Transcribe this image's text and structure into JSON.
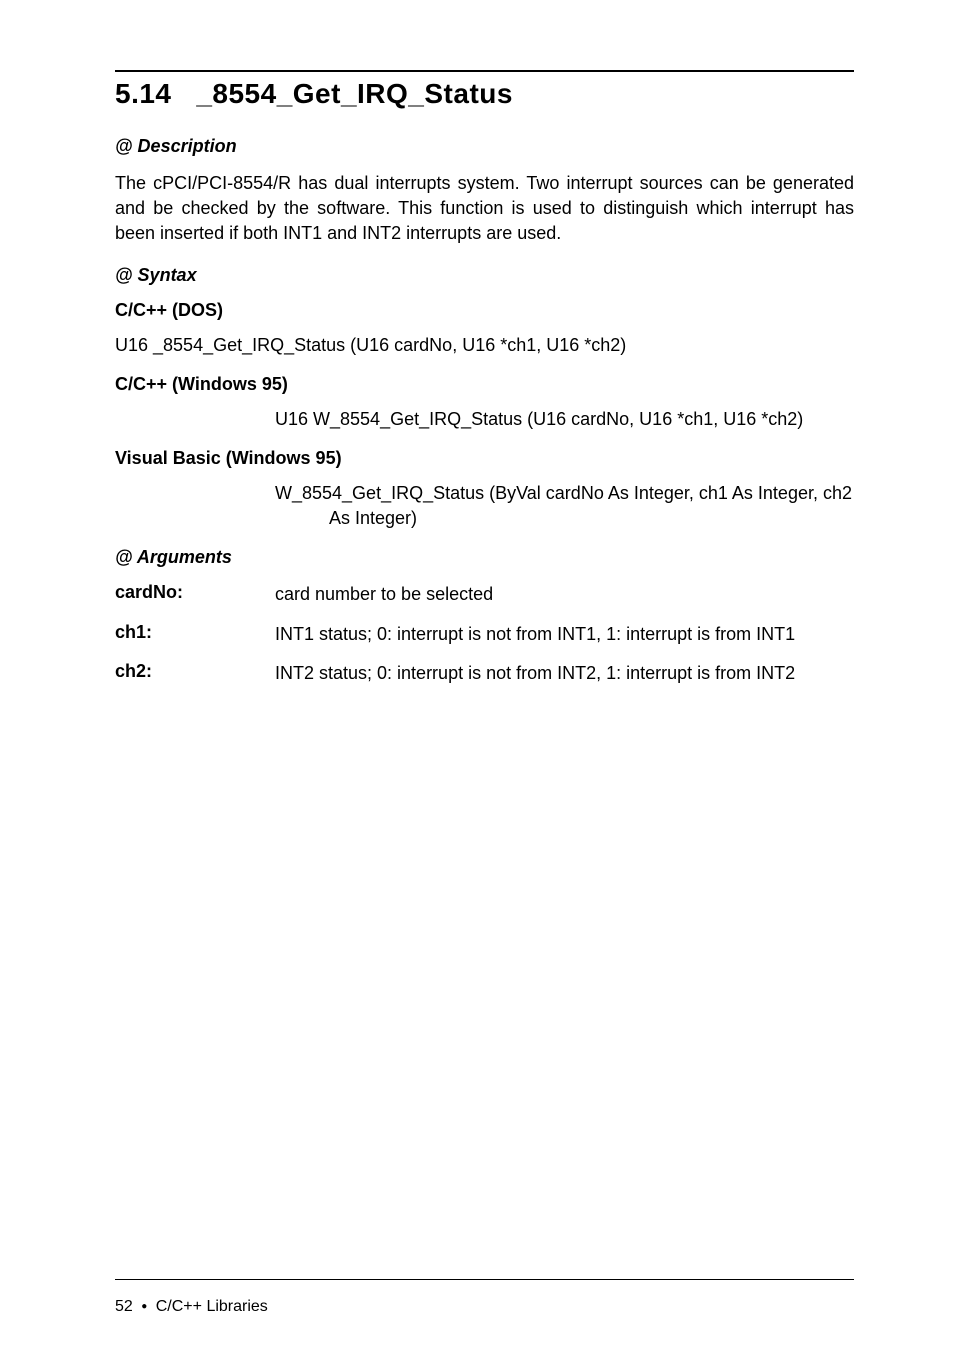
{
  "section": {
    "number": "5.14",
    "title": "_8554_Get_IRQ_Status"
  },
  "description": {
    "heading": "@ Description",
    "text": "The cPCI/PCI-8554/R has dual interrupts system. Two interrupt sources can be generated and be checked by the software. This function is used to distinguish which interrupt has been inserted if both INT1 and INT2 interrupts are used."
  },
  "syntax": {
    "heading": "@ Syntax",
    "variants": [
      {
        "label": "C/C++ (DOS)",
        "code": "U16 _8554_Get_IRQ_Status (U16 cardNo, U16 *ch1, U16 *ch2)"
      },
      {
        "label": "C/C++ (Windows 95)",
        "code": "U16 W_8554_Get_IRQ_Status (U16 cardNo, U16 *ch1, U16 *ch2)"
      },
      {
        "label": "Visual Basic (Windows 95)",
        "code": "W_8554_Get_IRQ_Status (ByVal cardNo As Integer, ch1 As Integer, ch2 As Integer)"
      }
    ]
  },
  "arguments": {
    "heading": "@ Arguments",
    "rows": [
      {
        "key": "cardNo:",
        "val": "card number to be selected"
      },
      {
        "key": "ch1:",
        "val": "INT1 status; 0: interrupt is not from INT1, 1: interrupt is from INT1"
      },
      {
        "key": "ch2:",
        "val": "INT2 status; 0: interrupt is not from INT2, 1: interrupt is from INT2"
      }
    ]
  },
  "footer": {
    "page": "52",
    "label": "C/C++ Libraries"
  }
}
